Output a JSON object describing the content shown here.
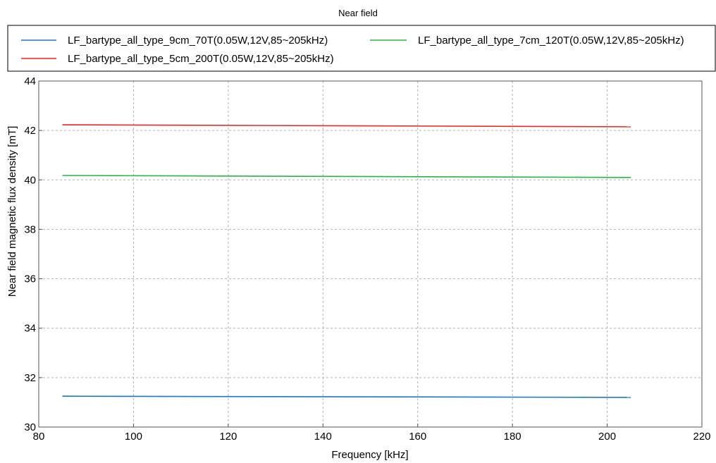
{
  "chart_data": {
    "type": "line",
    "title": "Near field",
    "xlabel": "Frequency [kHz]",
    "ylabel": "Near field magnetic flux density [mT]",
    "xlim": [
      80,
      220
    ],
    "ylim": [
      30,
      44
    ],
    "xticks": [
      80,
      100,
      120,
      140,
      160,
      180,
      200,
      220
    ],
    "yticks": [
      30,
      32,
      34,
      36,
      38,
      40,
      42,
      44
    ],
    "grid": true,
    "legend_position": "top",
    "series": [
      {
        "name": "LF_bartype_all_type_9cm_70T(0.05W,12V,85~205kHz)",
        "color": "#1f77c4",
        "x": [
          85,
          205
        ],
        "y": [
          31.25,
          31.2
        ]
      },
      {
        "name": "LF_bartype_all_type_7cm_120T(0.05W,12V,85~205kHz)",
        "color": "#2ab34a",
        "x": [
          85,
          205
        ],
        "y": [
          40.18,
          40.1
        ]
      },
      {
        "name": "LF_bartype_all_type_5cm_200T(0.05W,12V,85~205kHz)",
        "color": "#e8282b",
        "x": [
          85,
          205
        ],
        "y": [
          42.23,
          42.15
        ]
      }
    ]
  }
}
